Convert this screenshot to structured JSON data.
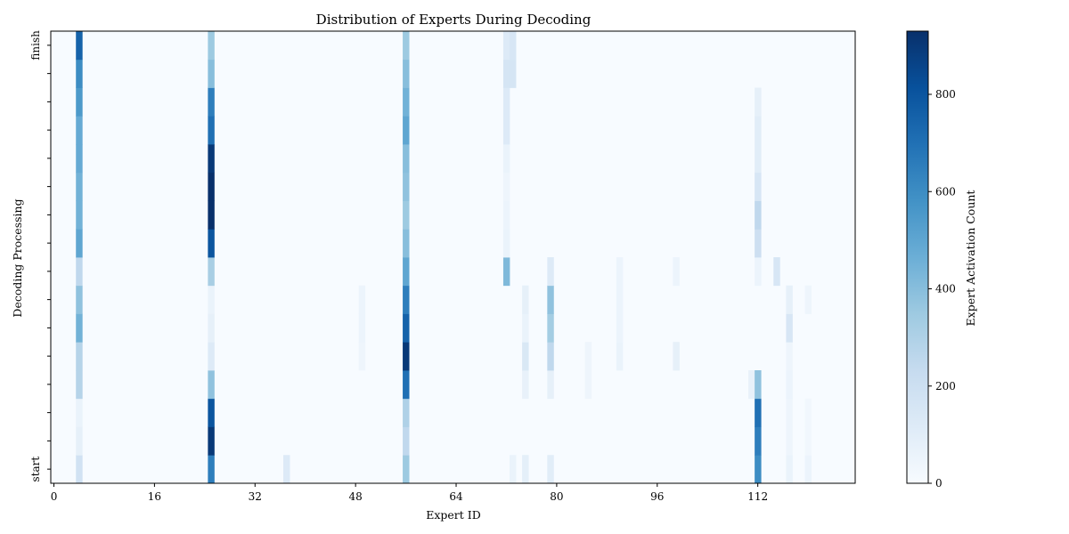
{
  "chart_data": {
    "type": "heatmap",
    "title": "Distribution of Experts During Decoding",
    "xlabel": "Expert ID",
    "ylabel": "Decoding Processing",
    "x_range": [
      0,
      128
    ],
    "x_ticks": [
      0,
      16,
      32,
      48,
      64,
      80,
      96,
      112
    ],
    "y_tick_count": 16,
    "y_tick_labels": {
      "bottom": "start",
      "top": "finish"
    },
    "colorbar": {
      "label": "Expert Activation Count",
      "min": 0,
      "max": 930,
      "ticks": [
        0,
        200,
        400,
        600,
        800
      ],
      "colormap": "Blues",
      "colors": [
        "#f7fbff",
        "#deebf7",
        "#c6dbef",
        "#9ecae1",
        "#6baed6",
        "#4292c6",
        "#2171b5",
        "#08519c",
        "#08306b"
      ]
    },
    "rows_bottom_to_top": [
      {
        "4": 180,
        "25": 650,
        "37": 120,
        "56": 350,
        "73": 60,
        "75": 90,
        "79": 100,
        "112": 600,
        "117": 60,
        "120": 50
      },
      {
        "4": 80,
        "25": 900,
        "56": 250,
        "112": 650,
        "117": 40,
        "120": 30
      },
      {
        "4": 60,
        "25": 800,
        "56": 300,
        "112": 700,
        "117": 40,
        "120": 30
      },
      {
        "4": 280,
        "25": 380,
        "56": 700,
        "75": 70,
        "79": 80,
        "85": 40,
        "111": 70,
        "112": 380,
        "117": 50
      },
      {
        "4": 280,
        "25": 120,
        "49": 40,
        "56": 900,
        "75": 140,
        "79": 250,
        "85": 40,
        "90": 60,
        "99": 80,
        "117": 40
      },
      {
        "4": 450,
        "25": 80,
        "49": 50,
        "56": 750,
        "75": 60,
        "79": 330,
        "90": 50,
        "117": 150
      },
      {
        "4": 380,
        "25": 60,
        "49": 50,
        "56": 650,
        "75": 80,
        "79": 380,
        "90": 50,
        "117": 80,
        "120": 40
      },
      {
        "4": 250,
        "25": 320,
        "56": 500,
        "72": 420,
        "79": 120,
        "90": 50,
        "99": 50,
        "112": 50,
        "115": 150
      },
      {
        "4": 500,
        "25": 800,
        "56": 400,
        "72": 60,
        "112": 200
      },
      {
        "4": 450,
        "25": 930,
        "56": 350,
        "72": 50,
        "112": 250
      },
      {
        "4": 450,
        "25": 930,
        "56": 380,
        "72": 40,
        "112": 150
      },
      {
        "4": 480,
        "25": 900,
        "56": 400,
        "72": 60,
        "112": 100
      },
      {
        "4": 480,
        "25": 700,
        "56": 500,
        "72": 120,
        "112": 100
      },
      {
        "4": 550,
        "25": 650,
        "56": 450,
        "72": 120,
        "112": 80
      },
      {
        "4": 600,
        "25": 400,
        "56": 400,
        "72": 160,
        "73": 160
      },
      {
        "4": 750,
        "25": 350,
        "56": 350,
        "72": 120,
        "73": 150
      }
    ]
  }
}
